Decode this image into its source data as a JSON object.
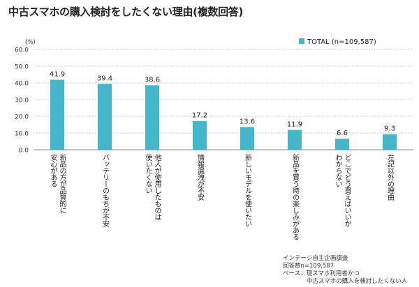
{
  "title": "中古スマホの購入検討をしたくない理由(複数回答)",
  "source_lines": [
    "インテージ自主企画調査",
    "回答数n=109,587",
    "ベース：現スマホ利用者かつ",
    "　　　　中古スマホの購入を検討したくない人"
  ],
  "chart_data": {
    "type": "bar",
    "unit_label": "(%)",
    "legend": "TOTAL (n=109,587)",
    "legend_placement": "top-right",
    "grid": true,
    "ylim": [
      0,
      60
    ],
    "yticks": [
      "0.0",
      "10.0",
      "20.0",
      "30.0",
      "40.0",
      "50.0",
      "60.0"
    ],
    "bar_color": "#45b5c9",
    "categories": [
      [
        "新品の方が品質的に",
        "安心がある"
      ],
      [
        "バッテリーのもちが不安"
      ],
      [
        "他人が使用したものは",
        "使いたくない"
      ],
      [
        "情報漏洩が不安"
      ],
      [
        "新しいモデルを使いたい"
      ],
      [
        "新品を買う時の楽しみがある"
      ],
      [
        "どこでどう買えばいいか",
        "わからない"
      ],
      [
        "左記以外の理由"
      ]
    ],
    "values": [
      41.9,
      39.4,
      38.6,
      17.2,
      13.6,
      11.9,
      6.6,
      9.3
    ],
    "value_labels": [
      "41.9",
      "39.4",
      "38.6",
      "17.2",
      "13.6",
      "11.9",
      "6.6",
      "9.3"
    ]
  }
}
